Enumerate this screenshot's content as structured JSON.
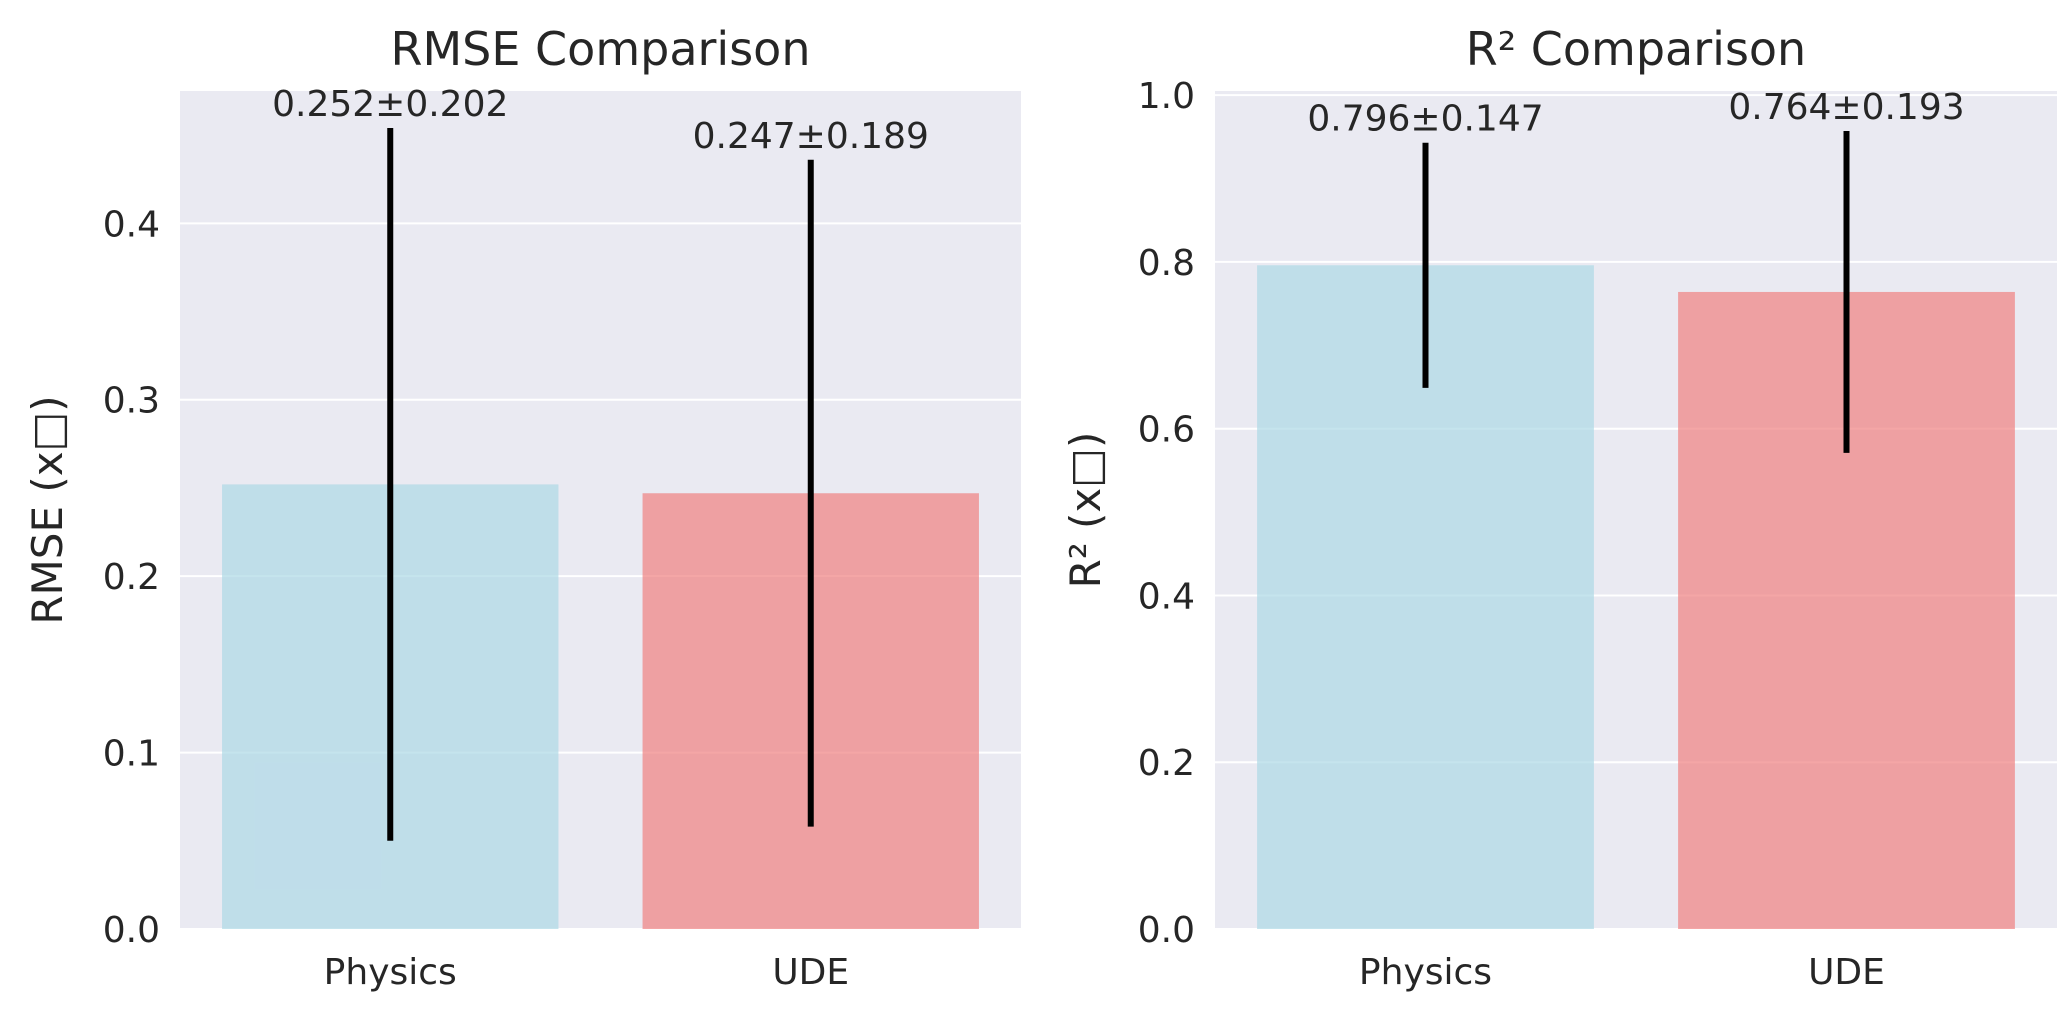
{
  "chart_data": [
    {
      "type": "bar",
      "title": "RMSE Comparison",
      "xlabel": "",
      "ylabel": "RMSE (x□)",
      "categories": [
        "Physics",
        "UDE"
      ],
      "values": [
        0.252,
        0.247
      ],
      "errors": [
        0.202,
        0.189
      ],
      "data_labels": [
        "0.252±0.202",
        "0.247±0.189"
      ],
      "colors": [
        "#add8e6",
        "#f08080"
      ],
      "ylim": [
        0,
        0.475
      ],
      "yticks": [
        0.0,
        0.1,
        0.2,
        0.3,
        0.4
      ],
      "ytick_labels": [
        "0.0",
        "0.1",
        "0.2",
        "0.3",
        "0.4"
      ],
      "grid": true
    },
    {
      "type": "bar",
      "title": "R² Comparison",
      "xlabel": "",
      "ylabel": "R² (x□)",
      "categories": [
        "Physics",
        "UDE"
      ],
      "values": [
        0.796,
        0.764
      ],
      "errors": [
        0.147,
        0.193
      ],
      "data_labels": [
        "0.796±0.147",
        "0.764±0.193"
      ],
      "colors": [
        "#add8e6",
        "#f08080"
      ],
      "ylim": [
        0,
        1.005
      ],
      "yticks": [
        0.0,
        0.2,
        0.4,
        0.6,
        0.8,
        1.0
      ],
      "ytick_labels": [
        "0.0",
        "0.2",
        "0.4",
        "0.6",
        "0.8",
        "1.0"
      ],
      "grid": true
    }
  ],
  "style": {
    "axes_background": "#eaeaf2",
    "grid_color": "#ffffff",
    "errorbar_color": "#000000"
  }
}
